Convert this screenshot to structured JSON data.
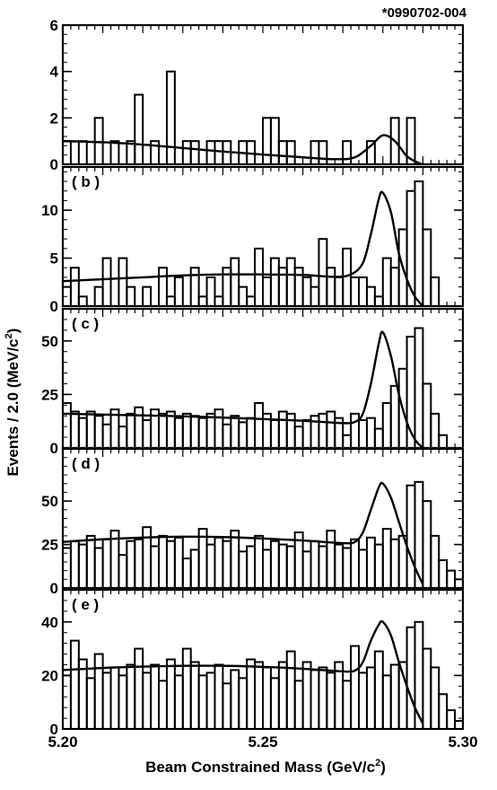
{
  "figure_id": "*0990702-004",
  "ylabel": "Events / 2.0 (MeV/c",
  "ylabel_sup": "2",
  "ylabel_tail": ")",
  "xlabel": "Beam Constrained Mass (GeV/c",
  "xlabel_sup": "2",
  "xlabel_tail": ")",
  "chart_data": {
    "type": "histogram",
    "x_range": [
      5.2,
      5.3
    ],
    "x_ticks": [
      "5.20",
      "5.25",
      "5.30"
    ],
    "bin_width_gev": 0.002,
    "bin_edges_start": 5.2,
    "panels": [
      {
        "label": "",
        "ylim": [
          0,
          6
        ],
        "yticks": [
          0,
          2,
          4,
          6
        ],
        "counts": [
          1,
          0,
          1,
          0,
          2,
          0,
          1,
          0,
          1,
          3,
          0,
          1,
          0,
          4,
          0,
          1,
          1,
          0,
          1,
          1,
          1,
          0,
          1,
          1,
          0,
          2,
          2,
          1,
          1,
          0,
          0,
          1,
          1,
          0,
          0,
          1,
          0,
          0,
          1,
          0,
          0,
          2,
          0,
          2,
          0,
          0,
          0,
          0,
          0,
          0
        ],
        "fit": [
          [
            5.2,
            1.0
          ],
          [
            5.21,
            0.95
          ],
          [
            5.22,
            0.85
          ],
          [
            5.23,
            0.7
          ],
          [
            5.24,
            0.55
          ],
          [
            5.25,
            0.42
          ],
          [
            5.26,
            0.3
          ],
          [
            5.268,
            0.22
          ],
          [
            5.273,
            0.3
          ],
          [
            5.277,
            0.8
          ],
          [
            5.28,
            1.25
          ],
          [
            5.283,
            1.0
          ],
          [
            5.286,
            0.35
          ],
          [
            5.289,
            0.05
          ],
          [
            5.29,
            0.0
          ]
        ]
      },
      {
        "label": "( b )",
        "ylim": [
          0,
          14.5
        ],
        "yticks": [
          0,
          5,
          10
        ],
        "counts": [
          2,
          4,
          1,
          0,
          2,
          5,
          0,
          5,
          2,
          0,
          2,
          0,
          4,
          1,
          3,
          0,
          4,
          1,
          3,
          1,
          4,
          5,
          2,
          1,
          6,
          3,
          5,
          4,
          5,
          4,
          3,
          2,
          7,
          4,
          3,
          6,
          3,
          3,
          2,
          1,
          5,
          4,
          8,
          12,
          13,
          8,
          3,
          0,
          0,
          0
        ],
        "fit": [
          [
            5.2,
            2.6
          ],
          [
            5.21,
            2.8
          ],
          [
            5.22,
            3.0
          ],
          [
            5.23,
            3.2
          ],
          [
            5.24,
            3.3
          ],
          [
            5.25,
            3.3
          ],
          [
            5.26,
            3.25
          ],
          [
            5.268,
            3.05
          ],
          [
            5.272,
            3.3
          ],
          [
            5.275,
            4.5
          ],
          [
            5.277,
            7.5
          ],
          [
            5.279,
            11.2
          ],
          [
            5.28,
            11.8
          ],
          [
            5.282,
            9.8
          ],
          [
            5.284,
            5.5
          ],
          [
            5.286,
            2.8
          ],
          [
            5.288,
            1.0
          ],
          [
            5.29,
            0.0
          ]
        ]
      },
      {
        "label": "( c )",
        "ylim": [
          0,
          65
        ],
        "yticks": [
          0,
          25,
          50
        ],
        "counts": [
          21,
          17,
          14,
          17,
          15,
          11,
          18,
          10,
          16,
          19,
          13,
          18,
          16,
          17,
          14,
          16,
          15,
          14,
          16,
          18,
          11,
          15,
          12,
          14,
          21,
          16,
          13,
          17,
          16,
          10,
          13,
          15,
          16,
          17,
          14,
          6,
          16,
          13,
          14,
          9,
          21,
          29,
          37,
          52,
          56,
          30,
          16,
          6,
          0,
          0
        ],
        "fit": [
          [
            5.2,
            16.0
          ],
          [
            5.21,
            15.6
          ],
          [
            5.22,
            15.2
          ],
          [
            5.23,
            14.8
          ],
          [
            5.24,
            14.2
          ],
          [
            5.25,
            13.5
          ],
          [
            5.26,
            12.7
          ],
          [
            5.27,
            11.6
          ],
          [
            5.273,
            12.2
          ],
          [
            5.275,
            16.0
          ],
          [
            5.277,
            30.0
          ],
          [
            5.279,
            49.0
          ],
          [
            5.28,
            54.0
          ],
          [
            5.282,
            43.0
          ],
          [
            5.284,
            25.0
          ],
          [
            5.286,
            12.0
          ],
          [
            5.288,
            4.0
          ],
          [
            5.29,
            0.0
          ]
        ]
      },
      {
        "label": "( d )",
        "ylim": [
          0,
          80
        ],
        "yticks": [
          0,
          25,
          50
        ],
        "counts": [
          23,
          27,
          25,
          30,
          23,
          28,
          33,
          19,
          27,
          28,
          35,
          24,
          30,
          27,
          29,
          17,
          22,
          34,
          25,
          29,
          27,
          33,
          21,
          24,
          30,
          22,
          27,
          25,
          24,
          32,
          21,
          27,
          24,
          33,
          25,
          23,
          28,
          22,
          29,
          25,
          34,
          28,
          30,
          59,
          61,
          50,
          30,
          16,
          10,
          5
        ],
        "fit": [
          [
            5.2,
            26.5
          ],
          [
            5.21,
            28.0
          ],
          [
            5.22,
            29.0
          ],
          [
            5.23,
            29.5
          ],
          [
            5.24,
            29.3
          ],
          [
            5.25,
            28.5
          ],
          [
            5.26,
            27.3
          ],
          [
            5.27,
            25.8
          ],
          [
            5.273,
            26.5
          ],
          [
            5.275,
            32.0
          ],
          [
            5.277,
            45.0
          ],
          [
            5.279,
            58.0
          ],
          [
            5.28,
            60.0
          ],
          [
            5.282,
            52.0
          ],
          [
            5.284,
            38.0
          ],
          [
            5.286,
            24.0
          ],
          [
            5.288,
            12.0
          ],
          [
            5.29,
            2.0
          ]
        ]
      },
      {
        "label": "( e )",
        "ylim": [
          0,
          52
        ],
        "yticks": [
          0,
          20,
          40
        ],
        "counts": [
          20,
          33,
          26,
          19,
          28,
          21,
          23,
          20,
          24,
          30,
          21,
          24,
          18,
          26,
          20,
          30,
          25,
          20,
          21,
          24,
          17,
          22,
          19,
          26,
          25,
          23,
          19,
          25,
          29,
          18,
          25,
          22,
          23,
          21,
          25,
          18,
          31,
          21,
          23,
          29,
          20,
          24,
          25,
          38,
          40,
          30,
          23,
          13,
          7,
          3
        ],
        "fit": [
          [
            5.2,
            22.0
          ],
          [
            5.21,
            22.8
          ],
          [
            5.22,
            23.3
          ],
          [
            5.23,
            23.6
          ],
          [
            5.24,
            23.6
          ],
          [
            5.25,
            23.2
          ],
          [
            5.26,
            22.5
          ],
          [
            5.27,
            21.5
          ],
          [
            5.273,
            21.8
          ],
          [
            5.275,
            25.0
          ],
          [
            5.277,
            33.0
          ],
          [
            5.279,
            39.0
          ],
          [
            5.28,
            40.0
          ],
          [
            5.282,
            35.0
          ],
          [
            5.284,
            25.0
          ],
          [
            5.286,
            16.0
          ],
          [
            5.288,
            8.0
          ],
          [
            5.29,
            2.0
          ]
        ]
      }
    ]
  }
}
